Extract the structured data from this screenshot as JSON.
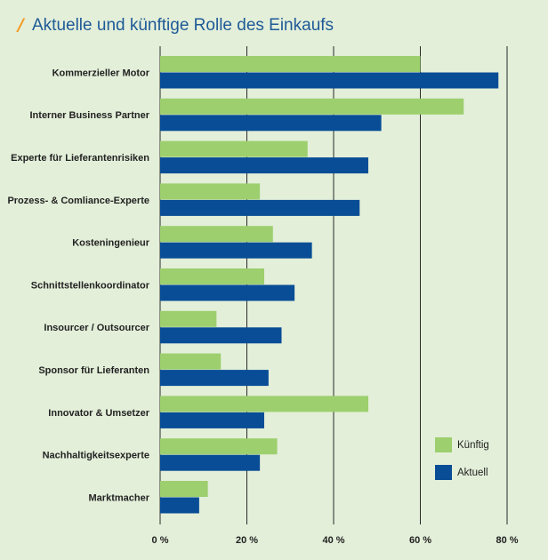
{
  "title": {
    "slash": "/",
    "text": "Aktuelle und künftige Rolle des Einkaufs"
  },
  "chart_data": {
    "type": "bar",
    "orientation": "horizontal",
    "categories": [
      "Kommerzieller Motor",
      "Interner Business Partner",
      "Experte für Lieferantenrisiken",
      "Prozess- & Comliance-Experte",
      "Kosteningenieur",
      "Schnittstellenkoordinator",
      "Insourcer / Outsourcer",
      "Sponsor für Lieferanten",
      "Innovator & Umsetzer",
      "Nachhaltigkeitsexperte",
      "Marktmacher"
    ],
    "series": [
      {
        "name": "Künftig",
        "color": "#9dcf6e",
        "values": [
          60,
          70,
          34,
          23,
          26,
          24,
          13,
          14,
          48,
          27,
          11
        ]
      },
      {
        "name": "Aktuell",
        "color": "#084d96",
        "values": [
          78,
          51,
          48,
          46,
          35,
          31,
          28,
          25,
          24,
          23,
          9
        ]
      }
    ],
    "xlim": [
      0,
      80
    ],
    "ticks": [
      0,
      20,
      40,
      60,
      80
    ],
    "tick_labels": [
      "0 %",
      "20 %",
      "40 %",
      "60 %",
      "80 %"
    ],
    "grid": true,
    "legend_position": "bottom-right",
    "title": "Aktuelle und künftige Rolle des Einkaufs"
  }
}
